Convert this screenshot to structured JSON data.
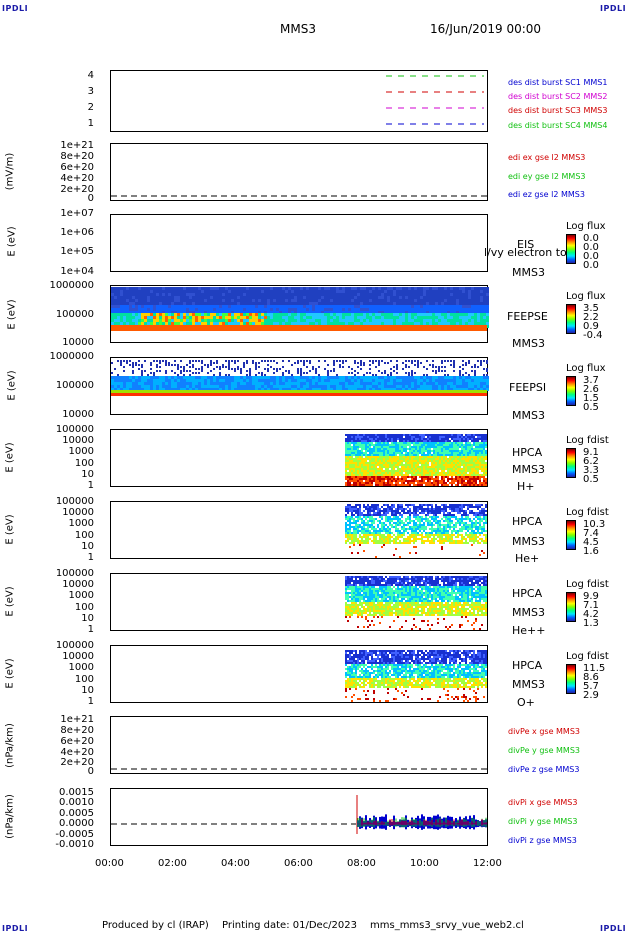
{
  "header": {
    "corner_left": "IPDLI",
    "corner_right": "IPDLI",
    "spacecraft": "MMS3",
    "date": "16/Jun/2019 00:00"
  },
  "footer": {
    "corner_left": "IPDLI",
    "corner_right": "IPDLI",
    "produced": "Produced by cl (IRAP)",
    "printing": "Printing date: 01/Dec/2023",
    "file": "mms_mms3_srvy_vue_web2.cl"
  },
  "colors": {
    "red": "#d00000",
    "green": "#10c010",
    "blue": "#0000d0",
    "magenta": "#d000d0"
  },
  "chart_data": {
    "type": "heatmap",
    "x_ticks": [
      "00:00",
      "02:00",
      "04:00",
      "06:00",
      "08:00",
      "10:00",
      "12:00"
    ],
    "xlim": [
      "00:00",
      "12:00"
    ],
    "panels": [
      {
        "id": "des-dist",
        "yticks": [
          "4",
          "3",
          "2",
          "1"
        ],
        "ylabel": "",
        "legend": [
          {
            "text": "des dist burst SC1 MMS1",
            "color": "#0000d0"
          },
          {
            "text": "des dist burst SC2 MMS2",
            "color": "#d000d0"
          },
          {
            "text": "des dist burst SC3 MMS3",
            "color": "#d00000"
          },
          {
            "text": "des dist burst SC4 MMS4",
            "color": "#10c010"
          }
        ]
      },
      {
        "id": "edi",
        "yticks": [
          "1e+21",
          "8e+20",
          "6e+20",
          "4e+20",
          "2e+20",
          "0"
        ],
        "ylabel": "(mV/m)",
        "legend": [
          {
            "text": "edi ex gse l2 MMS3",
            "color": "#d00000"
          },
          {
            "text": "edi ey gse l2 MMS3",
            "color": "#10c010"
          },
          {
            "text": "edi ez gse l2 MMS3",
            "color": "#0000d0"
          }
        ]
      },
      {
        "id": "eis",
        "yticks": [
          "1e+07",
          "1e+06",
          "1e+05",
          "1e+04"
        ],
        "ylabel": "E (eV)",
        "right": [
          "EIS",
          "MMS3"
        ],
        "overlay": "l/vy electron to",
        "cbar_title": "Log flux",
        "cbar": [
          "0.0",
          "0.0",
          "0.0",
          "0.0"
        ]
      },
      {
        "id": "feepse",
        "yticks": [
          "1000000",
          "100000",
          "10000"
        ],
        "ylabel": "E (eV)",
        "right": [
          "FEEPSE",
          "MMS3"
        ],
        "cbar_title": "Log flux",
        "cbar": [
          "3.5",
          "2.2",
          "0.9",
          "-0.4"
        ]
      },
      {
        "id": "feepsi",
        "yticks": [
          "1000000",
          "100000",
          "10000"
        ],
        "ylabel": "E (eV)",
        "right": [
          "FEEPSI",
          "MMS3"
        ],
        "cbar_title": "Log flux",
        "cbar": [
          "3.7",
          "2.6",
          "1.5",
          "0.5"
        ]
      },
      {
        "id": "hpca-h",
        "yticks": [
          "100000",
          "10000",
          "1000",
          "100",
          "10",
          "1"
        ],
        "ylabel": "E (eV)",
        "right": [
          "HPCA",
          "MMS3",
          "H+"
        ],
        "cbar_title": "Log fdist",
        "cbar": [
          "9.1",
          "6.2",
          "3.3",
          "0.5"
        ]
      },
      {
        "id": "hpca-he",
        "yticks": [
          "100000",
          "10000",
          "1000",
          "100",
          "10",
          "1"
        ],
        "ylabel": "E (eV)",
        "right": [
          "HPCA",
          "MMS3",
          "He+"
        ],
        "cbar_title": "Log fdist",
        "cbar": [
          "10.3",
          "7.4",
          "4.5",
          "1.6"
        ]
      },
      {
        "id": "hpca-hepp",
        "yticks": [
          "100000",
          "10000",
          "1000",
          "100",
          "10",
          "1"
        ],
        "ylabel": "E (eV)",
        "right": [
          "HPCA",
          "MMS3",
          "He++"
        ],
        "cbar_title": "Log fdist",
        "cbar": [
          "9.9",
          "7.1",
          "4.2",
          "1.3"
        ]
      },
      {
        "id": "hpca-o",
        "yticks": [
          "100000",
          "10000",
          "1000",
          "100",
          "10",
          "1"
        ],
        "ylabel": "E (eV)",
        "right": [
          "HPCA",
          "MMS3",
          "O+"
        ],
        "cbar_title": "Log fdist",
        "cbar": [
          "11.5",
          "8.6",
          "5.7",
          "2.9"
        ]
      },
      {
        "id": "divpe",
        "yticks": [
          "1e+21",
          "8e+20",
          "6e+20",
          "4e+20",
          "2e+20",
          "0"
        ],
        "ylabel": "(nPa/km)",
        "legend": [
          {
            "text": "divPe x gse MMS3",
            "color": "#d00000"
          },
          {
            "text": "divPe y gse MMS3",
            "color": "#10c010"
          },
          {
            "text": "divPe z gse MMS3",
            "color": "#0000d0"
          }
        ]
      },
      {
        "id": "divpi",
        "yticks": [
          "0.0015",
          "0.0010",
          "0.0005",
          "0.0000",
          "-0.0005",
          "-0.0010"
        ],
        "ylabel": "(nPa/km)",
        "legend": [
          {
            "text": "divPi x gse MMS3",
            "color": "#d00000"
          },
          {
            "text": "divPi y gse MMS3",
            "color": "#10c010"
          },
          {
            "text": "divPi z gse MMS3",
            "color": "#0000d0"
          }
        ]
      }
    ]
  }
}
